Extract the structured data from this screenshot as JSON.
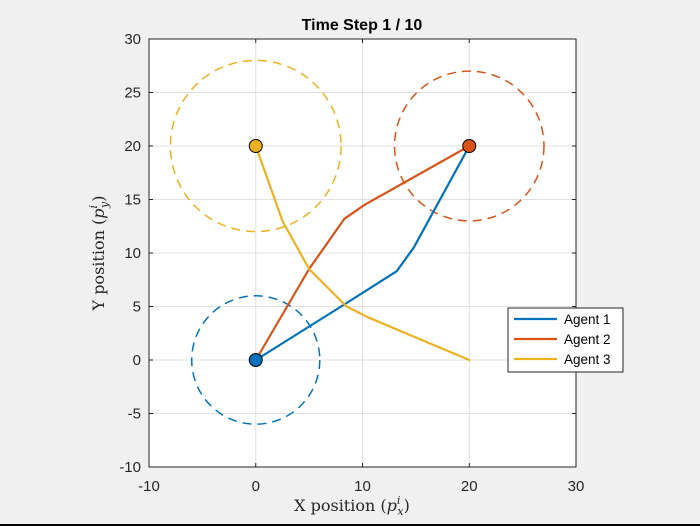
{
  "chart_data": {
    "type": "line",
    "title": "Time Step 1 / 10",
    "xlabel": {
      "prefix": "X position (",
      "symbol": "p",
      "sup": "i",
      "sub": "x",
      "suffix": ")"
    },
    "ylabel": {
      "prefix": "Y position (",
      "symbol": "p",
      "sup": "i",
      "sub": "y",
      "suffix": ")"
    },
    "xlim": [
      -10,
      30
    ],
    "ylim": [
      -10,
      30
    ],
    "xticks": [
      -10,
      0,
      10,
      20,
      30
    ],
    "yticks": [
      -10,
      -5,
      0,
      5,
      10,
      15,
      20,
      25,
      30
    ],
    "xtick_labels": [
      "-10",
      "0",
      "10",
      "20",
      "30"
    ],
    "ytick_labels": [
      "-10",
      "-5",
      "0",
      "5",
      "10",
      "15",
      "20",
      "25",
      "30"
    ],
    "grid": true,
    "legend_position": "right",
    "series": [
      {
        "name": "Agent 1",
        "color": "#0072BD",
        "x": [
          0,
          8,
          13.2,
          14.8,
          20
        ],
        "y": [
          0,
          5,
          8.3,
          10.5,
          20
        ]
      },
      {
        "name": "Agent 2",
        "color": "#D95319",
        "x": [
          0,
          5,
          8.3,
          10.2,
          20
        ],
        "y": [
          0,
          8.5,
          13.2,
          14.5,
          20
        ]
      },
      {
        "name": "Agent 3",
        "color": "#EDB120",
        "x": [
          0,
          2.5,
          5,
          8.5,
          10.5,
          20
        ],
        "y": [
          20,
          13,
          8.5,
          5,
          4,
          0
        ]
      }
    ],
    "start_markers": [
      {
        "x": 0,
        "y": 0,
        "color": "#0072BD"
      },
      {
        "x": 20,
        "y": 20,
        "color": "#D95319"
      },
      {
        "x": 0,
        "y": 20,
        "color": "#EDB120"
      }
    ],
    "safety_circles": [
      {
        "cx": 0,
        "cy": 0,
        "r": 6,
        "color": "#0072BD"
      },
      {
        "cx": 20,
        "cy": 20,
        "r": 7,
        "color": "#D95319"
      },
      {
        "cx": 0,
        "cy": 20,
        "r": 8,
        "color": "#EDB120"
      }
    ]
  }
}
